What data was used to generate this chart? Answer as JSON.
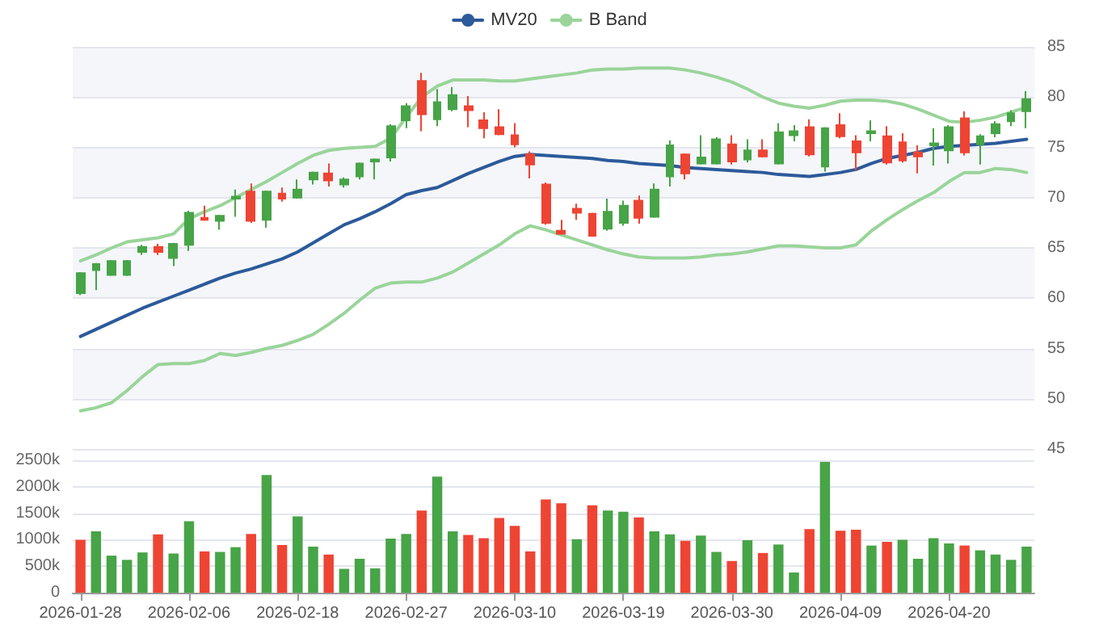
{
  "chart_data": [
    {
      "type": "candlestick",
      "categories": [
        "2026-01-28",
        null,
        null,
        null,
        null,
        null,
        null,
        "2026-02-06",
        null,
        null,
        null,
        null,
        null,
        null,
        "2026-02-18",
        null,
        null,
        null,
        null,
        null,
        null,
        "2026-02-27",
        null,
        null,
        null,
        null,
        null,
        null,
        "2026-03-10",
        null,
        null,
        null,
        null,
        null,
        null,
        "2026-03-19",
        null,
        null,
        null,
        null,
        null,
        null,
        "2026-03-30",
        null,
        null,
        null,
        null,
        null,
        null,
        "2026-04-09",
        null,
        null,
        null,
        null,
        null,
        null,
        "2026-04-20",
        null,
        null,
        null,
        null,
        null
      ],
      "ohlc": [
        [
          60.5,
          62.6,
          60.3,
          62.5
        ],
        [
          62.8,
          63.5,
          60.8,
          63.4
        ],
        [
          62.3,
          63.8,
          62.2,
          63.7
        ],
        [
          62.3,
          63.8,
          62.2,
          63.7
        ],
        [
          64.6,
          65.3,
          64.3,
          65.1
        ],
        [
          65.1,
          65.4,
          64.3,
          64.6
        ],
        [
          64.0,
          65.5,
          63.2,
          65.4
        ],
        [
          65.3,
          68.7,
          64.7,
          68.5
        ],
        [
          68.0,
          69.2,
          67.7,
          67.8
        ],
        [
          67.7,
          68.3,
          66.8,
          68.2
        ],
        [
          69.9,
          70.8,
          68.1,
          70.1
        ],
        [
          70.6,
          71.4,
          67.5,
          67.7
        ],
        [
          67.8,
          70.7,
          67.0,
          70.6
        ],
        [
          70.4,
          71.0,
          69.6,
          69.9
        ],
        [
          70.0,
          71.8,
          69.9,
          70.8
        ],
        [
          71.8,
          72.6,
          71.3,
          72.5
        ],
        [
          72.4,
          73.4,
          71.1,
          71.7
        ],
        [
          71.3,
          72.0,
          71.0,
          71.8
        ],
        [
          72.1,
          73.5,
          71.8,
          73.4
        ],
        [
          73.6,
          73.9,
          71.8,
          73.8
        ],
        [
          74.0,
          77.3,
          73.6,
          77.1
        ],
        [
          77.7,
          79.4,
          76.9,
          79.1
        ],
        [
          81.6,
          82.4,
          76.6,
          78.3
        ],
        [
          77.8,
          80.8,
          77.1,
          79.5
        ],
        [
          78.8,
          81.0,
          78.6,
          80.2
        ],
        [
          79.1,
          80.1,
          77.0,
          78.7
        ],
        [
          77.7,
          78.5,
          75.9,
          76.9
        ],
        [
          77.0,
          78.8,
          76.2,
          76.3
        ],
        [
          76.2,
          77.4,
          75.0,
          75.3
        ],
        [
          74.3,
          74.6,
          71.9,
          73.3
        ],
        [
          71.3,
          71.5,
          67.3,
          67.5
        ],
        [
          66.7,
          67.8,
          66.3,
          66.4
        ],
        [
          68.9,
          69.4,
          67.8,
          68.5
        ],
        [
          68.4,
          68.5,
          66.1,
          66.2
        ],
        [
          66.9,
          69.9,
          66.7,
          68.6
        ],
        [
          67.5,
          69.7,
          67.2,
          69.2
        ],
        [
          69.7,
          70.2,
          67.4,
          68.0
        ],
        [
          68.1,
          71.4,
          68.0,
          70.8
        ],
        [
          72.1,
          75.7,
          71.1,
          75.2
        ],
        [
          74.3,
          74.4,
          71.8,
          72.4
        ],
        [
          73.4,
          76.2,
          73.3,
          74.0
        ],
        [
          73.4,
          76.0,
          73.3,
          75.8
        ],
        [
          75.3,
          76.2,
          73.3,
          73.6
        ],
        [
          73.8,
          75.8,
          73.5,
          74.7
        ],
        [
          74.7,
          75.8,
          74.0,
          74.1
        ],
        [
          73.4,
          77.4,
          73.3,
          76.5
        ],
        [
          76.2,
          77.2,
          75.6,
          76.6
        ],
        [
          77.0,
          77.8,
          74.1,
          74.3
        ],
        [
          73.1,
          77.0,
          72.6,
          76.9
        ],
        [
          77.2,
          78.4,
          75.9,
          76.1
        ],
        [
          75.6,
          76.2,
          72.7,
          74.5
        ],
        [
          76.4,
          77.7,
          75.6,
          76.6
        ],
        [
          76.1,
          77.1,
          73.3,
          73.5
        ],
        [
          75.5,
          76.4,
          73.5,
          73.7
        ],
        [
          74.5,
          75.2,
          72.4,
          74.1
        ],
        [
          75.2,
          76.9,
          73.2,
          75.4
        ],
        [
          74.7,
          77.2,
          73.4,
          77.0
        ],
        [
          77.9,
          78.6,
          74.2,
          74.5
        ],
        [
          75.3,
          76.3,
          73.3,
          76.1
        ],
        [
          76.4,
          77.6,
          76.0,
          77.3
        ],
        [
          77.6,
          78.7,
          77.1,
          78.4
        ],
        [
          78.6,
          80.6,
          76.9,
          79.8
        ]
      ],
      "colors": [
        "#47a447",
        "#47a447",
        "#47a447",
        "#47a447",
        "#47a447",
        "#ee4433",
        "#47a447",
        "#47a447",
        "#ee4433",
        "#47a447",
        "#47a447",
        "#ee4433",
        "#47a447",
        "#ee4433",
        "#47a447",
        "#47a447",
        "#ee4433",
        "#47a447",
        "#47a447",
        "#47a447",
        "#47a447",
        "#47a447",
        "#ee4433",
        "#47a447",
        "#47a447",
        "#ee4433",
        "#ee4433",
        "#ee4433",
        "#ee4433",
        "#ee4433",
        "#ee4433",
        "#ee4433",
        "#ee4433",
        "#ee4433",
        "#47a447",
        "#47a447",
        "#ee4433",
        "#47a447",
        "#47a447",
        "#ee4433",
        "#47a447",
        "#47a447",
        "#ee4433",
        "#47a447",
        "#ee4433",
        "#47a447",
        "#47a447",
        "#ee4433",
        "#47a447",
        "#ee4433",
        "#ee4433",
        "#47a447",
        "#ee4433",
        "#ee4433",
        "#ee4433",
        "#47a447",
        "#47a447",
        "#ee4433",
        "#47a447",
        "#47a447",
        "#47a447",
        "#47a447"
      ],
      "series": [
        {
          "type": "line",
          "name": "MV20",
          "color": "#2c5a9a",
          "values": [
            56.2,
            56.9,
            57.6,
            58.3,
            59.0,
            59.6,
            60.2,
            60.8,
            61.4,
            62.0,
            62.5,
            62.9,
            63.4,
            63.9,
            64.6,
            65.5,
            66.4,
            67.3,
            67.9,
            68.6,
            69.4,
            70.3,
            70.7,
            71.0,
            71.7,
            72.4,
            73.0,
            73.6,
            74.1,
            74.3,
            74.2,
            74.1,
            74.0,
            73.9,
            73.7,
            73.6,
            73.4,
            73.3,
            73.2,
            73.0,
            72.9,
            72.8,
            72.7,
            72.6,
            72.5,
            72.3,
            72.2,
            72.1,
            72.3,
            72.5,
            72.8,
            73.4,
            73.9,
            74.2,
            74.5,
            74.9,
            75.1,
            75.2,
            75.3,
            75.4,
            75.6,
            75.8
          ]
        },
        {
          "type": "line",
          "name": "B Band",
          "color": "#9ad49a",
          "values": [
            63.7,
            64.3,
            65.0,
            65.6,
            65.8,
            66.0,
            66.4,
            67.9,
            68.6,
            69.2,
            70.0,
            70.8,
            71.6,
            72.5,
            73.4,
            74.2,
            74.7,
            74.9,
            75.0,
            75.1,
            75.9,
            78.0,
            80.0,
            81.1,
            81.7,
            81.7,
            81.7,
            81.6,
            81.6,
            81.8,
            82.0,
            82.2,
            82.4,
            82.7,
            82.8,
            82.8,
            82.9,
            82.9,
            82.9,
            82.7,
            82.4,
            82.0,
            81.5,
            80.8,
            80.0,
            79.4,
            79.1,
            78.9,
            79.2,
            79.6,
            79.7,
            79.7,
            79.6,
            79.3,
            78.8,
            78.2,
            77.6,
            77.5,
            77.7,
            78.0,
            78.5,
            79.0
          ]
        },
        {
          "type": "line",
          "color": "#9ad49a",
          "values": [
            48.8,
            49.1,
            49.6,
            50.8,
            52.2,
            53.4,
            53.5,
            53.5,
            53.8,
            54.5,
            54.3,
            54.6,
            55.0,
            55.3,
            55.8,
            56.4,
            57.4,
            58.5,
            59.8,
            61.0,
            61.5,
            61.6,
            61.6,
            62.0,
            62.6,
            63.5,
            64.4,
            65.3,
            66.4,
            67.2,
            66.8,
            66.3,
            65.8,
            65.3,
            64.8,
            64.4,
            64.1,
            64.0,
            64.0,
            64.0,
            64.1,
            64.3,
            64.4,
            64.6,
            64.9,
            65.2,
            65.2,
            65.1,
            65.0,
            65.0,
            65.3,
            66.7,
            67.8,
            68.8,
            69.7,
            70.5,
            71.6,
            72.5,
            72.5,
            72.9,
            72.8,
            72.5
          ]
        }
      ],
      "ylim": [
        45,
        85
      ],
      "yticks": [
        45,
        50,
        55,
        60,
        65,
        70,
        75,
        80,
        85
      ],
      "grid": "y",
      "legend": "top",
      "marker": "none",
      "line_style": "solid",
      "tick_labels": "y"
    },
    {
      "type": "bar",
      "categories": [
        "2026-01-28",
        null,
        null,
        null,
        null,
        null,
        null,
        "2026-02-06",
        null,
        null,
        null,
        null,
        null,
        null,
        "2026-02-18",
        null,
        null,
        null,
        null,
        null,
        null,
        "2026-02-27",
        null,
        null,
        null,
        null,
        null,
        null,
        "2026-03-10",
        null,
        null,
        null,
        null,
        null,
        null,
        "2026-03-19",
        null,
        null,
        null,
        null,
        null,
        null,
        "2026-03-30",
        null,
        null,
        null,
        null,
        null,
        null,
        "2026-04-09",
        null,
        null,
        null,
        null,
        null,
        null,
        "2026-04-20",
        null,
        null,
        null,
        null,
        null
      ],
      "values": [
        1000000,
        1160000,
        700000,
        620000,
        760000,
        1100000,
        740000,
        1350000,
        780000,
        770000,
        860000,
        1110000,
        2220000,
        900000,
        1440000,
        870000,
        720000,
        450000,
        640000,
        460000,
        1020000,
        1110000,
        1550000,
        2190000,
        1160000,
        1090000,
        1030000,
        1410000,
        1260000,
        780000,
        1760000,
        1690000,
        1010000,
        1650000,
        1550000,
        1530000,
        1420000,
        1160000,
        1100000,
        980000,
        1080000,
        770000,
        600000,
        990000,
        750000,
        910000,
        380000,
        1200000,
        2470000,
        1170000,
        1190000,
        890000,
        960000,
        1000000,
        640000,
        1030000,
        930000,
        890000,
        800000,
        720000,
        620000,
        870000
      ],
      "colors": [
        "#ee4433",
        "#47a447",
        "#47a447",
        "#47a447",
        "#47a447",
        "#ee4433",
        "#47a447",
        "#47a447",
        "#ee4433",
        "#47a447",
        "#47a447",
        "#ee4433",
        "#47a447",
        "#ee4433",
        "#47a447",
        "#47a447",
        "#ee4433",
        "#47a447",
        "#47a447",
        "#47a447",
        "#47a447",
        "#47a447",
        "#ee4433",
        "#47a447",
        "#47a447",
        "#ee4433",
        "#ee4433",
        "#ee4433",
        "#ee4433",
        "#ee4433",
        "#ee4433",
        "#ee4433",
        "#47a447",
        "#ee4433",
        "#47a447",
        "#47a447",
        "#ee4433",
        "#47a447",
        "#47a447",
        "#ee4433",
        "#47a447",
        "#47a447",
        "#ee4433",
        "#47a447",
        "#ee4433",
        "#47a447",
        "#47a447",
        "#ee4433",
        "#47a447",
        "#ee4433",
        "#ee4433",
        "#47a447",
        "#ee4433",
        "#47a447",
        "#47a447",
        "#47a447",
        "#47a447",
        "#ee4433",
        "#47a447",
        "#47a447",
        "#47a447",
        "#47a447"
      ],
      "ylim": [
        0,
        2500000
      ],
      "yticks": [
        {
          "value": 0,
          "label": "0"
        },
        {
          "value": 500000,
          "label": "500k"
        },
        {
          "value": 1000000,
          "label": "1000k"
        },
        {
          "value": 1500000,
          "label": "1500k"
        },
        {
          "value": 2000000,
          "label": "2000k"
        },
        {
          "value": 2500000,
          "label": "2500k"
        }
      ],
      "grid": "y"
    }
  ]
}
